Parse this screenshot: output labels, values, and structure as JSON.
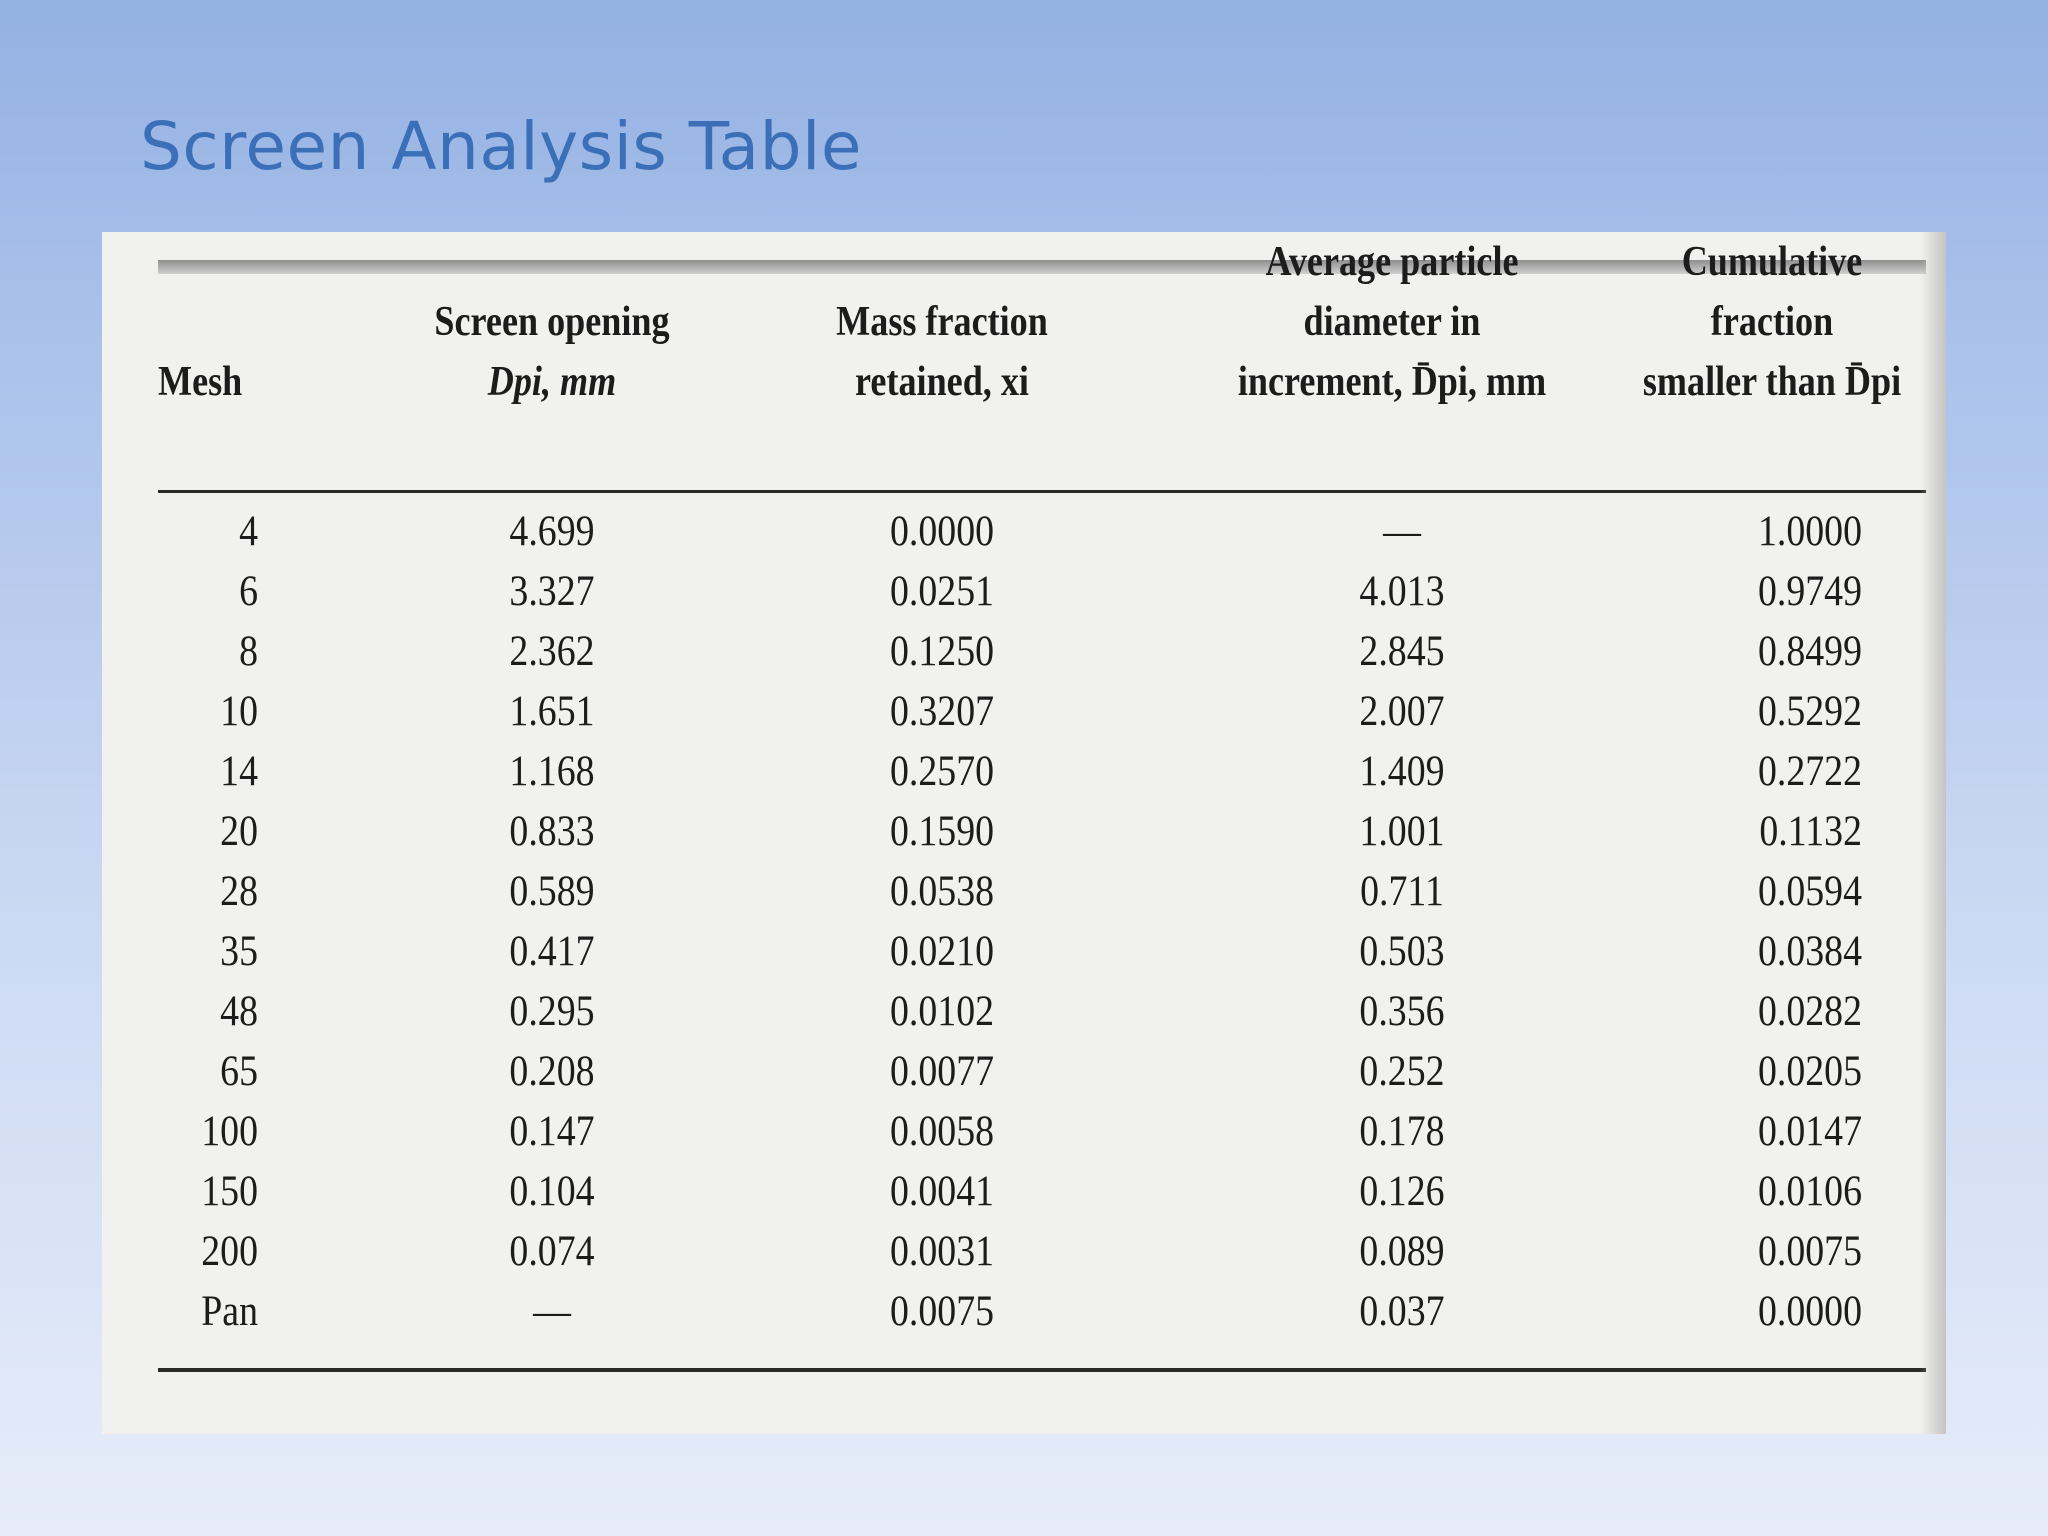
{
  "slide": {
    "title": "Screen Analysis Table"
  },
  "table": {
    "headers": {
      "mesh": "Mesh",
      "screen_opening": [
        "Screen opening",
        "Dpi, mm"
      ],
      "mass_fraction": [
        "Mass fraction",
        "retained, xi"
      ],
      "average_diameter": [
        "Average particle",
        "diameter in",
        "increment, D̄pi, mm"
      ],
      "cumulative": [
        "Cumulative",
        "fraction",
        "smaller than D̄pi"
      ]
    },
    "rows": [
      [
        "4",
        "4.699",
        "0.0000",
        "—",
        "1.0000"
      ],
      [
        "6",
        "3.327",
        "0.0251",
        "4.013",
        "0.9749"
      ],
      [
        "8",
        "2.362",
        "0.1250",
        "2.845",
        "0.8499"
      ],
      [
        "10",
        "1.651",
        "0.3207",
        "2.007",
        "0.5292"
      ],
      [
        "14",
        "1.168",
        "0.2570",
        "1.409",
        "0.2722"
      ],
      [
        "20",
        "0.833",
        "0.1590",
        "1.001",
        "0.1132"
      ],
      [
        "28",
        "0.589",
        "0.0538",
        "0.711",
        "0.0594"
      ],
      [
        "35",
        "0.417",
        "0.0210",
        "0.503",
        "0.0384"
      ],
      [
        "48",
        "0.295",
        "0.0102",
        "0.356",
        "0.0282"
      ],
      [
        "65",
        "0.208",
        "0.0077",
        "0.252",
        "0.0205"
      ],
      [
        "100",
        "0.147",
        "0.0058",
        "0.178",
        "0.0147"
      ],
      [
        "150",
        "0.104",
        "0.0041",
        "0.126",
        "0.0106"
      ],
      [
        "200",
        "0.074",
        "0.0031",
        "0.089",
        "0.0075"
      ],
      [
        "Pan",
        "—",
        "0.0075",
        "0.037",
        "0.0000"
      ]
    ]
  }
}
